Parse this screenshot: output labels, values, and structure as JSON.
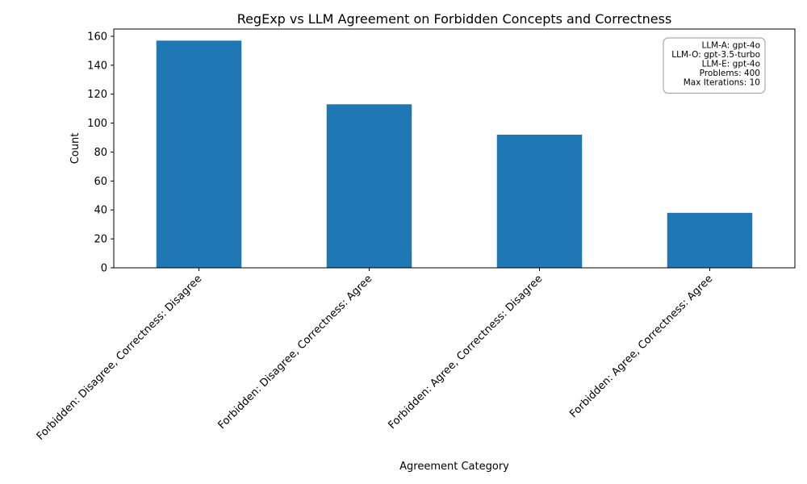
{
  "chart_data": {
    "type": "bar",
    "title": "RegExp vs LLM Agreement on Forbidden Concepts and Correctness",
    "xlabel": "Agreement Category",
    "ylabel": "Count",
    "categories": [
      "Forbidden: Disagree, Correctness: Disagree",
      "Forbidden: Disagree, Correctness: Agree",
      "Forbidden: Agree, Correctness: Disagree",
      "Forbidden: Agree, Correctness: Agree"
    ],
    "values": [
      157,
      113,
      92,
      38
    ],
    "ylim": [
      0,
      165
    ],
    "yticks": [
      0,
      20,
      40,
      60,
      80,
      100,
      120,
      140,
      160
    ],
    "bar_color": "#1f77b4",
    "grid": false,
    "annotation": {
      "placement": "top-right",
      "lines": [
        "LLM-A: gpt-4o",
        "LLM-O: gpt-3.5-turbo",
        "LLM-E: gpt-4o",
        "Problems: 400",
        "Max Iterations: 10"
      ]
    }
  }
}
